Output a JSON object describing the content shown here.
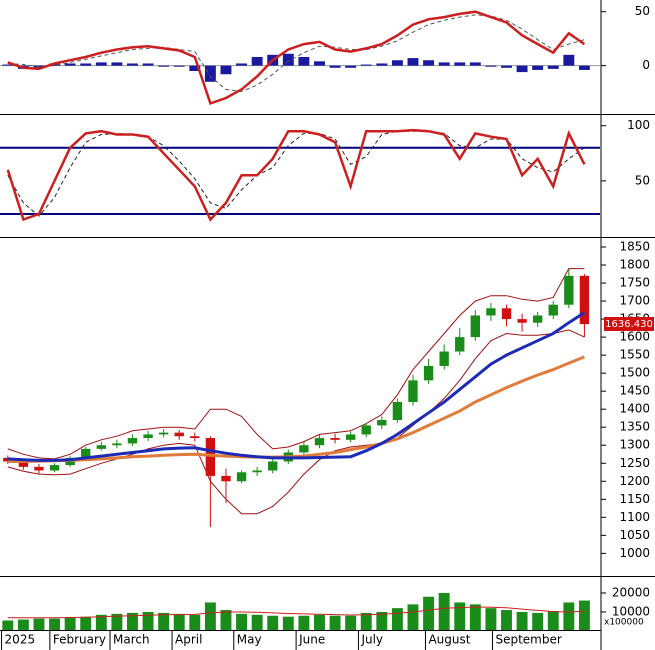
{
  "chart_data": [
    {
      "type": "macd",
      "x": [
        0,
        1,
        2,
        3,
        4,
        5,
        6,
        7,
        8,
        9,
        10,
        11,
        12,
        13,
        14,
        15,
        16,
        17,
        18,
        19,
        20,
        21,
        22,
        23,
        24,
        25,
        26,
        27,
        28,
        29,
        30,
        31,
        32,
        33,
        34,
        35,
        36,
        37
      ],
      "xlim": [
        -0.5,
        38
      ],
      "ylim": [
        -43,
        59
      ],
      "yticks": [
        0,
        50
      ],
      "series": [
        {
          "color": "#1a1aa0",
          "bar": true,
          "values": [
            1,
            -3,
            -2,
            2,
            2,
            2,
            3,
            3,
            2,
            2,
            -1,
            -1,
            -5,
            -15,
            -8,
            2,
            8,
            10,
            11,
            8,
            4,
            -2,
            -2,
            1,
            2,
            5,
            7,
            5,
            3,
            3,
            3,
            -1,
            -2,
            -6,
            -4,
            -3,
            10,
            -4
          ]
        },
        {
          "color": "#555555",
          "dash": true,
          "values": [
            2,
            1,
            -1,
            0,
            3,
            6,
            9,
            12,
            15,
            16,
            17,
            15,
            13,
            -10,
            -22,
            -24,
            -18,
            -8,
            4,
            12,
            18,
            17,
            15,
            15,
            18,
            23,
            31,
            38,
            42,
            45,
            47,
            46,
            42,
            34,
            24,
            15,
            20,
            24
          ]
        },
        {
          "color": "#cc1f1f",
          "values": [
            3,
            -2,
            -3,
            2,
            5,
            8,
            12,
            15,
            17,
            18,
            16,
            14,
            8,
            -35,
            -30,
            -22,
            -10,
            5,
            15,
            20,
            22,
            15,
            13,
            16,
            20,
            28,
            38,
            43,
            45,
            48,
            50,
            45,
            40,
            28,
            20,
            12,
            30,
            20
          ]
        }
      ]
    },
    {
      "type": "stochastic",
      "x": [
        0,
        1,
        2,
        3,
        4,
        5,
        6,
        7,
        8,
        9,
        10,
        11,
        12,
        13,
        14,
        15,
        16,
        17,
        18,
        19,
        20,
        21,
        22,
        23,
        24,
        25,
        26,
        27,
        28,
        29,
        30,
        31,
        32,
        33,
        34,
        35,
        36,
        37
      ],
      "xlim": [
        -0.5,
        38
      ],
      "ylim": [
        0,
        107
      ],
      "yticks": [
        50,
        100
      ],
      "levels": [
        80,
        20
      ],
      "level_color": "#00007f",
      "series": [
        {
          "color": "#222222",
          "dash": true,
          "values": [
            55,
            30,
            18,
            35,
            62,
            85,
            92,
            93,
            92,
            90,
            82,
            68,
            52,
            30,
            25,
            42,
            55,
            62,
            82,
            93,
            93,
            88,
            65,
            72,
            92,
            95,
            95,
            95,
            93,
            82,
            80,
            88,
            88,
            70,
            62,
            58,
            70,
            80
          ]
        },
        {
          "color": "#cc1f1f",
          "values": [
            60,
            15,
            20,
            50,
            80,
            93,
            95,
            92,
            92,
            90,
            75,
            60,
            45,
            15,
            30,
            55,
            55,
            70,
            95,
            95,
            92,
            85,
            45,
            95,
            95,
            95,
            96,
            95,
            92,
            70,
            93,
            90,
            88,
            55,
            70,
            45,
            93,
            65
          ]
        }
      ]
    },
    {
      "type": "candlestick",
      "x": [
        0,
        1,
        2,
        3,
        4,
        5,
        6,
        7,
        8,
        9,
        10,
        11,
        12,
        13,
        14,
        15,
        16,
        17,
        18,
        19,
        20,
        21,
        22,
        23,
        24,
        25,
        26,
        27,
        28,
        29,
        30,
        31,
        32,
        33,
        34,
        35,
        36,
        37
      ],
      "xlim": [
        -0.5,
        38
      ],
      "ylim": [
        940,
        1875
      ],
      "yticks": [
        1000,
        1050,
        1100,
        1150,
        1200,
        1250,
        1300,
        1350,
        1400,
        1450,
        1500,
        1550,
        1600,
        1650,
        1700,
        1750,
        1800,
        1850
      ],
      "open": [
        1265,
        1255,
        1240,
        1230,
        1245,
        1265,
        1290,
        1300,
        1305,
        1320,
        1330,
        1335,
        1325,
        1320,
        1215,
        1200,
        1225,
        1230,
        1255,
        1280,
        1300,
        1320,
        1315,
        1330,
        1355,
        1370,
        1420,
        1480,
        1520,
        1560,
        1600,
        1660,
        1680,
        1650,
        1640,
        1660,
        1690,
        1770
      ],
      "high": [
        1272,
        1262,
        1248,
        1250,
        1270,
        1295,
        1310,
        1315,
        1330,
        1340,
        1345,
        1342,
        1335,
        1325,
        1235,
        1230,
        1240,
        1262,
        1288,
        1310,
        1330,
        1332,
        1338,
        1362,
        1380,
        1430,
        1495,
        1540,
        1580,
        1625,
        1675,
        1695,
        1690,
        1665,
        1670,
        1700,
        1790,
        1775
      ],
      "low": [
        1248,
        1232,
        1220,
        1225,
        1240,
        1260,
        1285,
        1292,
        1298,
        1312,
        1322,
        1315,
        1310,
        1073,
        1140,
        1195,
        1215,
        1222,
        1248,
        1272,
        1292,
        1305,
        1308,
        1322,
        1345,
        1362,
        1410,
        1470,
        1510,
        1550,
        1590,
        1645,
        1630,
        1615,
        1628,
        1650,
        1680,
        1600
      ],
      "close": [
        1255,
        1240,
        1230,
        1245,
        1265,
        1290,
        1300,
        1305,
        1320,
        1330,
        1335,
        1325,
        1320,
        1215,
        1200,
        1225,
        1230,
        1255,
        1280,
        1300,
        1320,
        1315,
        1330,
        1355,
        1370,
        1420,
        1480,
        1520,
        1560,
        1600,
        1660,
        1680,
        1650,
        1640,
        1660,
        1690,
        1770,
        1636
      ],
      "up_color": "#1a8c1a",
      "down_color": "#d01010",
      "series": [
        {
          "color": "#a01010",
          "width": 1,
          "values": [
            1290,
            1275,
            1265,
            1262,
            1275,
            1300,
            1315,
            1325,
            1340,
            1345,
            1350,
            1350,
            1345,
            1400,
            1400,
            1380,
            1330,
            1290,
            1295,
            1310,
            1330,
            1335,
            1340,
            1360,
            1385,
            1440,
            1510,
            1560,
            1610,
            1660,
            1700,
            1715,
            1715,
            1705,
            1700,
            1710,
            1790,
            1790
          ]
        },
        {
          "color": "#a01010",
          "width": 1,
          "values": [
            1240,
            1228,
            1220,
            1218,
            1220,
            1235,
            1250,
            1262,
            1275,
            1290,
            1300,
            1305,
            1300,
            1200,
            1150,
            1110,
            1110,
            1130,
            1170,
            1220,
            1260,
            1285,
            1295,
            1300,
            1305,
            1320,
            1355,
            1390,
            1430,
            1480,
            1540,
            1590,
            1610,
            1605,
            1605,
            1610,
            1620,
            1600
          ]
        },
        {
          "color": "#e07b39",
          "width": 3,
          "values": [
            1255,
            1255,
            1256,
            1257,
            1258,
            1260,
            1262,
            1265,
            1268,
            1270,
            1272,
            1274,
            1275,
            1272,
            1270,
            1268,
            1267,
            1267,
            1268,
            1270,
            1275,
            1280,
            1288,
            1295,
            1305,
            1318,
            1335,
            1355,
            1375,
            1395,
            1420,
            1440,
            1460,
            1478,
            1495,
            1510,
            1528,
            1545
          ]
        },
        {
          "color": "#1c2bb5",
          "width": 3,
          "values": [
            1262,
            1260,
            1258,
            1258,
            1260,
            1265,
            1270,
            1275,
            1280,
            1285,
            1290,
            1292,
            1293,
            1285,
            1278,
            1272,
            1268,
            1265,
            1265,
            1265,
            1266,
            1267,
            1268,
            1285,
            1305,
            1330,
            1360,
            1390,
            1420,
            1455,
            1490,
            1525,
            1550,
            1570,
            1590,
            1610,
            1640,
            1668
          ]
        }
      ],
      "last_label": {
        "value": 1636.43,
        "label": "1636.430"
      },
      "last_label_color": "#d01010"
    },
    {
      "type": "volume",
      "x": [
        0,
        1,
        2,
        3,
        4,
        5,
        6,
        7,
        8,
        9,
        10,
        11,
        12,
        13,
        14,
        15,
        16,
        17,
        18,
        19,
        20,
        21,
        22,
        23,
        24,
        25,
        26,
        27,
        28,
        29,
        30,
        31,
        32,
        33,
        34,
        35,
        36,
        37
      ],
      "xlim": [
        -0.5,
        38
      ],
      "ylim": [
        500,
        28400
      ],
      "yticks": [
        10000,
        20000
      ],
      "unit_label": "x100000",
      "color": "#1a8c1a",
      "values": [
        5500,
        6000,
        6500,
        6500,
        7000,
        7500,
        8500,
        9000,
        9500,
        10000,
        9500,
        9000,
        8500,
        15000,
        11000,
        9000,
        8500,
        8000,
        7500,
        8000,
        8500,
        8000,
        8000,
        9500,
        10000,
        12000,
        14000,
        18000,
        20000,
        15000,
        14000,
        12000,
        11000,
        10000,
        9500,
        10500,
        15000,
        16000
      ],
      "series": [
        {
          "color": "#cc1f1f",
          "width": 1,
          "values": [
            7000,
            7000,
            7000,
            7000,
            7100,
            7200,
            7500,
            7800,
            8000,
            8300,
            8500,
            8600,
            8700,
            9500,
            10000,
            10000,
            9800,
            9500,
            9200,
            9000,
            8800,
            8600,
            8400,
            8500,
            8800,
            9300,
            10000,
            11000,
            12000,
            12300,
            12600,
            12500,
            12200,
            11500,
            10800,
            10200,
            10000,
            10400
          ]
        }
      ],
      "xticks": [
        {
          "value": -0.4,
          "label": "2025"
        },
        {
          "value": 2.7,
          "label": "February"
        },
        {
          "value": 6.56,
          "label": "March"
        },
        {
          "value": 10.54,
          "label": "April"
        },
        {
          "value": 14.5,
          "label": "May"
        },
        {
          "value": 18.5,
          "label": "June"
        },
        {
          "value": 22.5,
          "label": "July"
        },
        {
          "value": 26.8,
          "label": "August"
        },
        {
          "value": 31.1,
          "label": "September"
        }
      ]
    }
  ]
}
